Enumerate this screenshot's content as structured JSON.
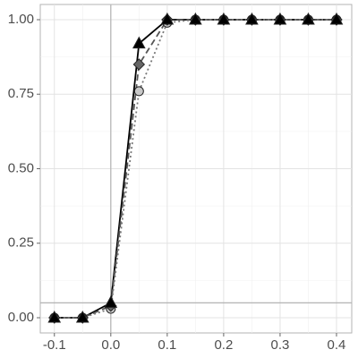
{
  "chart_data": {
    "type": "line",
    "x": [
      -0.1,
      -0.05,
      0,
      0.05,
      0.1,
      0.15,
      0.2,
      0.25,
      0.3,
      0.35,
      0.4
    ],
    "series": [
      {
        "color": "#000000",
        "marker": "triangle",
        "marker_fill": "#000000",
        "dash": "solid",
        "values": [
          0,
          0,
          0.05,
          0.92,
          1,
          1,
          1,
          1,
          1,
          1,
          1
        ]
      },
      {
        "color": "#555555",
        "marker": "diamond",
        "marker_fill": "#666666",
        "dash": "dashed",
        "values": [
          0,
          0,
          0.04,
          0.85,
          1,
          1,
          1,
          1,
          1,
          1,
          1
        ]
      },
      {
        "color": "#777777",
        "marker": "circle",
        "marker_fill": "#c8c8c8",
        "dash": "dotted",
        "values": [
          0,
          0,
          0.03,
          0.76,
          0.99,
          1,
          1,
          1,
          1,
          1,
          1
        ]
      }
    ],
    "xlim": [
      -0.125,
      0.427
    ],
    "ylim": [
      -0.051,
      1.051
    ],
    "xticks": [
      -0.1,
      {
        "value": 0,
        "label": "0.0"
      },
      0.1,
      0.2,
      0.3,
      0.4
    ],
    "yticks": [
      {
        "value": 0,
        "label": "0.00"
      },
      {
        "value": 0.25,
        "label": "0.25"
      },
      {
        "value": 0.5,
        "label": "0.50"
      },
      {
        "value": 0.75,
        "label": "0.75"
      },
      {
        "value": 1,
        "label": "1.00"
      }
    ],
    "hline": 0.05,
    "vline": 0,
    "grid": true
  }
}
